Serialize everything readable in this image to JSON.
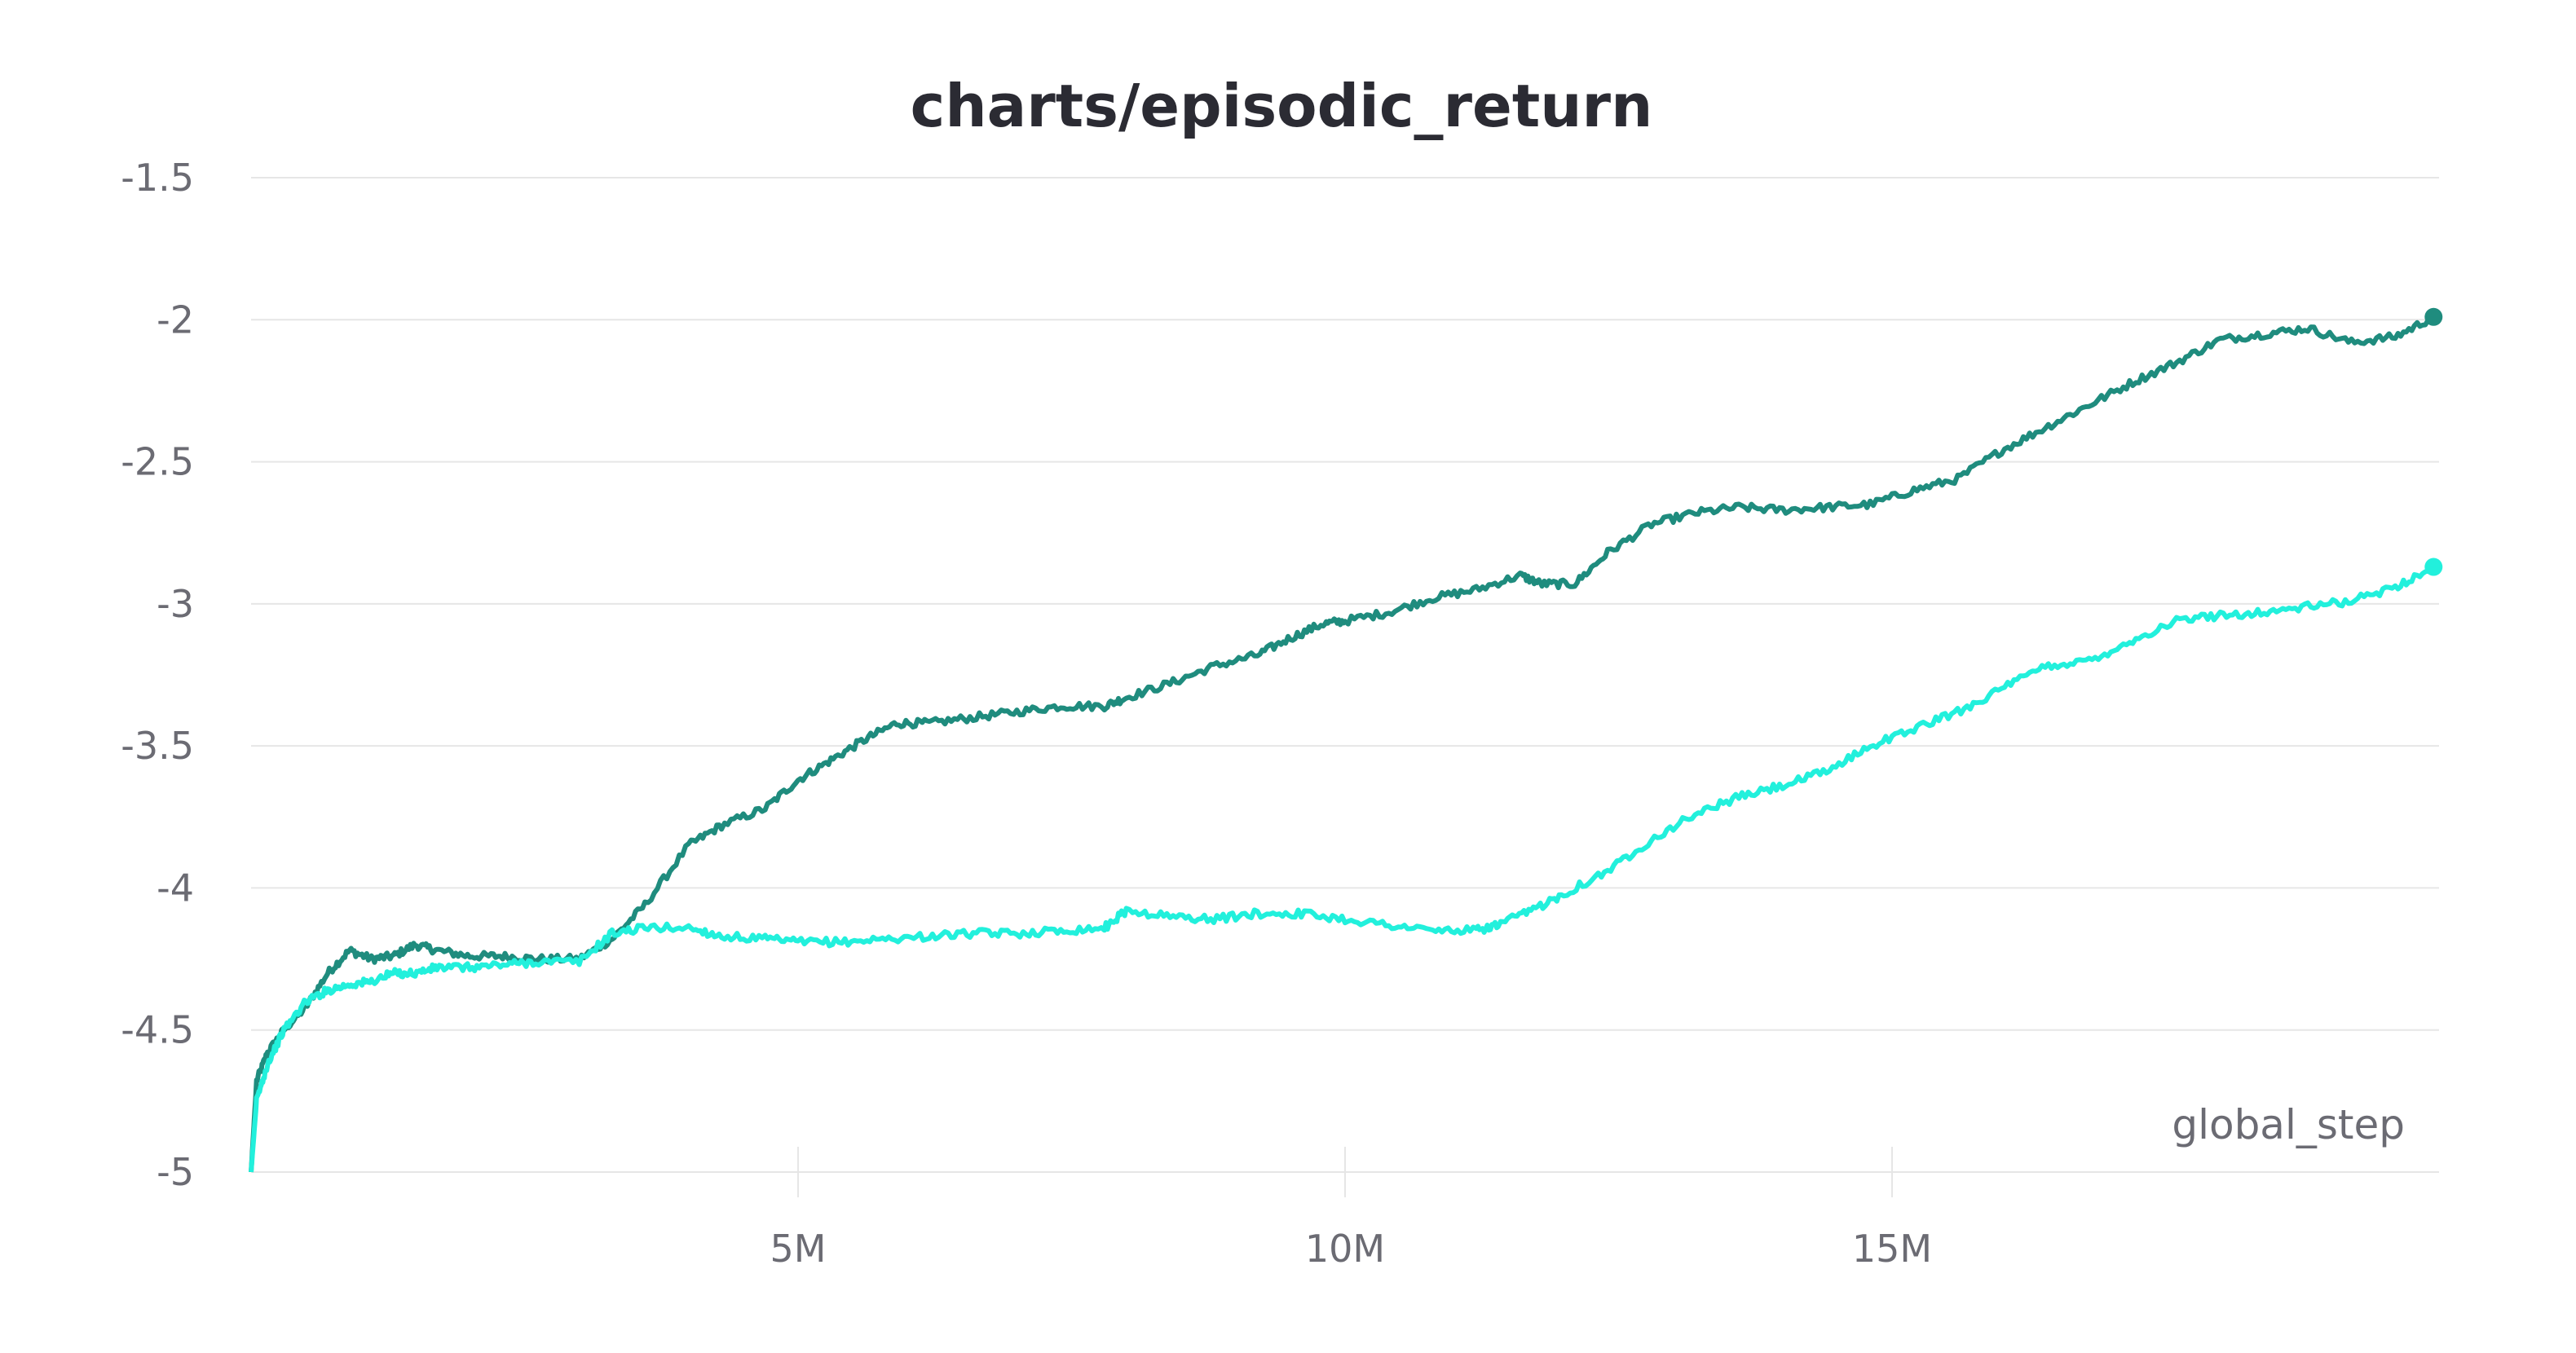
{
  "chart_data": {
    "type": "line",
    "title": "charts/episodic_return",
    "xlabel": "global_step",
    "ylabel": "",
    "xlim": [
      0,
      20000000
    ],
    "ylim": [
      -5,
      -1.5
    ],
    "yticks": [
      -1.5,
      -2,
      -2.5,
      -3,
      -3.5,
      -4,
      -4.5,
      -5
    ],
    "ytick_labels": [
      "-1.5",
      "-2",
      "-2.5",
      "-3",
      "-3.5",
      "-4",
      "-4.5",
      "-5"
    ],
    "xticks": [
      5000000,
      10000000,
      15000000
    ],
    "xtick_labels": [
      "5M",
      "10M",
      "15M"
    ],
    "grid": true,
    "legend": "none",
    "series": [
      {
        "color": "#1f8c7e",
        "x": [
          0,
          50000,
          150000,
          300000,
          500000,
          700000,
          900000,
          1100000,
          1300000,
          1500000,
          1700000,
          2000000,
          2300000,
          2600000,
          3000000,
          3300000,
          3600000,
          4000000,
          4300000,
          4700000,
          5000000,
          5300000,
          5600000,
          5900000,
          6200000,
          6600000,
          7000000,
          7400000,
          7800000,
          8000000,
          8400000,
          8800000,
          9200000,
          9500000,
          9800000,
          10000000,
          10400000,
          10800000,
          11200000,
          11600000,
          11800000,
          12100000,
          12400000,
          12800000,
          13200000,
          13600000,
          14000000,
          14400000,
          14800000,
          15200000,
          15600000,
          16000000,
          16400000,
          16800000,
          17200000,
          17600000,
          18000000,
          18400000,
          18800000,
          19200000,
          19600000,
          19950000
        ],
        "y": [
          -5,
          -4.68,
          -4.58,
          -4.5,
          -4.42,
          -4.3,
          -4.22,
          -4.25,
          -4.24,
          -4.2,
          -4.22,
          -4.24,
          -4.24,
          -4.25,
          -4.25,
          -4.18,
          -4.06,
          -3.85,
          -3.78,
          -3.72,
          -3.62,
          -3.55,
          -3.48,
          -3.42,
          -3.42,
          -3.4,
          -3.38,
          -3.36,
          -3.36,
          -3.33,
          -3.28,
          -3.22,
          -3.18,
          -3.12,
          -3.07,
          -3.06,
          -3.03,
          -2.98,
          -2.95,
          -2.9,
          -2.93,
          -2.93,
          -2.82,
          -2.72,
          -2.68,
          -2.66,
          -2.67,
          -2.66,
          -2.65,
          -2.6,
          -2.56,
          -2.46,
          -2.38,
          -2.3,
          -2.22,
          -2.15,
          -2.07,
          -2.05,
          -2.03,
          -2.08,
          -2.06,
          -1.99
        ]
      },
      {
        "color": "#22f0dc",
        "x": [
          0,
          50000,
          150000,
          300000,
          500000,
          700000,
          900000,
          1100000,
          1300000,
          1500000,
          1700000,
          2000000,
          2300000,
          2600000,
          3000000,
          3300000,
          3600000,
          4000000,
          4300000,
          4700000,
          5000000,
          5400000,
          5800000,
          6200000,
          6600000,
          7000000,
          7400000,
          7800000,
          8000000,
          8400000,
          8800000,
          9200000,
          9600000,
          10000000,
          10400000,
          10800000,
          11200000,
          11400000,
          11700000,
          12000000,
          12400000,
          12800000,
          13200000,
          13600000,
          14000000,
          14400000,
          14800000,
          15200000,
          15600000,
          16000000,
          16400000,
          16800000,
          17200000,
          17600000,
          18000000,
          18400000,
          18800000,
          19200000,
          19600000,
          19950000
        ],
        "y": [
          -5,
          -4.75,
          -4.62,
          -4.5,
          -4.4,
          -4.36,
          -4.34,
          -4.33,
          -4.3,
          -4.3,
          -4.28,
          -4.28,
          -4.27,
          -4.26,
          -4.26,
          -4.16,
          -4.14,
          -4.14,
          -4.17,
          -4.18,
          -4.19,
          -4.19,
          -4.18,
          -4.17,
          -4.16,
          -4.16,
          -4.15,
          -4.14,
          -4.08,
          -4.1,
          -4.11,
          -4.09,
          -4.09,
          -4.11,
          -4.13,
          -4.15,
          -4.15,
          -4.13,
          -4.08,
          -4.02,
          -3.94,
          -3.83,
          -3.74,
          -3.68,
          -3.64,
          -3.59,
          -3.5,
          -3.44,
          -3.38,
          -3.3,
          -3.22,
          -3.2,
          -3.13,
          -3.06,
          -3.04,
          -3.03,
          -3.01,
          -2.99,
          -2.94,
          -2.87
        ]
      }
    ]
  }
}
